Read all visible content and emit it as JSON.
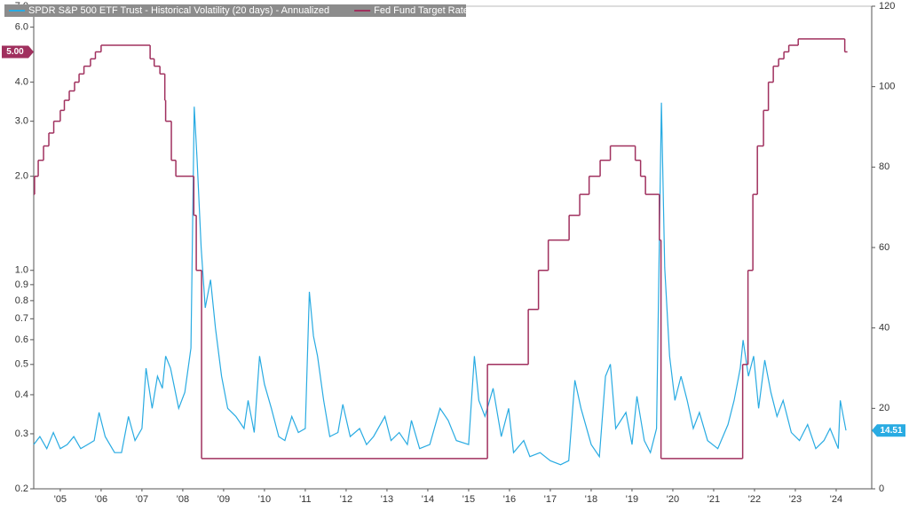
{
  "chart_data": {
    "type": "line",
    "log_y": true,
    "grid": false,
    "legend": "top-left",
    "xlim": [
      2004.85,
      2025.37
    ],
    "xticks": [
      {
        "value": 2005.5,
        "label": "'05"
      },
      {
        "value": 2006.5,
        "label": "'06"
      },
      {
        "value": 2007.5,
        "label": "'07"
      },
      {
        "value": 2008.5,
        "label": "'08"
      },
      {
        "value": 2009.5,
        "label": "'09"
      },
      {
        "value": 2010.5,
        "label": "'10"
      },
      {
        "value": 2011.5,
        "label": "'11"
      },
      {
        "value": 2012.5,
        "label": "'12"
      },
      {
        "value": 2013.5,
        "label": "'13"
      },
      {
        "value": 2014.5,
        "label": "'14"
      },
      {
        "value": 2015.5,
        "label": "'15"
      },
      {
        "value": 2016.5,
        "label": "'16"
      },
      {
        "value": 2017.5,
        "label": "'17"
      },
      {
        "value": 2018.5,
        "label": "'18"
      },
      {
        "value": 2019.5,
        "label": "'19"
      },
      {
        "value": 2020.5,
        "label": "'20"
      },
      {
        "value": 2021.5,
        "label": "'21"
      },
      {
        "value": 2022.5,
        "label": "'22"
      },
      {
        "value": 2023.5,
        "label": "'23"
      },
      {
        "value": 2024.5,
        "label": "'24"
      }
    ],
    "ylim": [
      0.2,
      7.0
    ],
    "yticks": [
      0.2,
      0.3,
      0.4,
      0.5,
      0.6,
      0.7,
      0.8,
      0.9,
      {
        "value": 1,
        "label": "1.0"
      },
      {
        "value": 2,
        "label": "2.0"
      },
      {
        "value": 3,
        "label": "3.0"
      },
      {
        "value": 4,
        "label": "4.0"
      },
      {
        "value": 6,
        "label": "6.0"
      },
      {
        "value": 7,
        "label": "7.0"
      }
    ],
    "y2lim": [
      0,
      120
    ],
    "y2ticks": [
      0,
      20,
      40,
      60,
      80,
      100,
      120
    ],
    "series": [
      {
        "name": "SPDR S&P 500 ETF Trust - Historical Volatility (20 days) - Annualized",
        "color": "#29abe2",
        "axis": "y2",
        "last_value_label": "14.51",
        "x": [
          2004.85,
          2005.0,
          2005.17,
          2005.33,
          2005.5,
          2005.67,
          2005.83,
          2006.0,
          2006.17,
          2006.33,
          2006.45,
          2006.6,
          2006.83,
          2007.0,
          2007.17,
          2007.33,
          2007.5,
          2007.6,
          2007.75,
          2007.88,
          2008.0,
          2008.08,
          2008.2,
          2008.4,
          2008.55,
          2008.7,
          2008.78,
          2008.85,
          2008.95,
          2009.05,
          2009.18,
          2009.3,
          2009.45,
          2009.6,
          2009.8,
          2010.0,
          2010.1,
          2010.25,
          2010.38,
          2010.5,
          2010.67,
          2010.85,
          2011.0,
          2011.17,
          2011.33,
          2011.5,
          2011.6,
          2011.7,
          2011.8,
          2011.95,
          2012.1,
          2012.3,
          2012.42,
          2012.6,
          2012.83,
          2013.0,
          2013.17,
          2013.45,
          2013.6,
          2013.8,
          2014.0,
          2014.1,
          2014.3,
          2014.55,
          2014.8,
          2015.0,
          2015.2,
          2015.5,
          2015.64,
          2015.75,
          2015.9,
          2016.1,
          2016.3,
          2016.48,
          2016.6,
          2016.85,
          2017.0,
          2017.25,
          2017.5,
          2017.75,
          2017.95,
          2018.1,
          2018.25,
          2018.5,
          2018.7,
          2018.85,
          2018.97,
          2019.1,
          2019.35,
          2019.5,
          2019.62,
          2019.8,
          2019.95,
          2020.1,
          2020.22,
          2020.3,
          2020.42,
          2020.55,
          2020.7,
          2020.85,
          2021.0,
          2021.15,
          2021.35,
          2021.6,
          2021.85,
          2022.0,
          2022.15,
          2022.22,
          2022.35,
          2022.48,
          2022.6,
          2022.75,
          2022.9,
          2023.05,
          2023.2,
          2023.4,
          2023.6,
          2023.8,
          2024.0,
          2024.2,
          2024.35,
          2024.55,
          2024.6,
          2024.74
        ],
        "values": [
          11,
          13,
          10,
          14,
          10,
          11,
          13,
          10,
          11,
          12,
          19,
          13,
          9,
          9,
          18,
          12,
          15,
          30,
          20,
          28,
          25,
          33,
          30,
          20,
          24,
          35,
          95,
          82,
          60,
          45,
          52,
          40,
          28,
          20,
          18,
          15,
          22,
          14,
          33,
          26,
          20,
          13,
          12,
          18,
          14,
          15,
          49,
          38,
          33,
          22,
          13,
          14,
          21,
          13,
          15,
          11,
          13,
          18,
          12,
          14,
          11,
          17,
          10,
          11,
          20,
          17,
          12,
          11,
          33,
          22,
          18,
          25,
          13,
          20,
          9,
          12,
          8,
          9,
          7,
          6,
          7,
          27,
          20,
          11,
          8,
          28,
          31,
          15,
          19,
          11,
          23,
          12,
          9,
          15,
          96,
          55,
          33,
          22,
          28,
          22,
          15,
          19,
          12,
          10,
          16,
          22,
          30,
          37,
          28,
          33,
          20,
          32,
          24,
          18,
          22,
          14,
          12,
          16,
          10,
          12,
          15,
          10,
          22,
          14.51
        ]
      },
      {
        "name": "Fed Fund Target Rate",
        "color": "#a0305e",
        "axis": "y",
        "step": true,
        "last_value_label": "5.00",
        "x": [
          2004.85,
          2004.87,
          2004.96,
          2005.09,
          2005.22,
          2005.34,
          2005.5,
          2005.6,
          2005.72,
          2005.85,
          2005.96,
          2006.08,
          2006.24,
          2006.36,
          2006.5,
          2007.7,
          2007.8,
          2007.94,
          2008.06,
          2008.08,
          2008.22,
          2008.33,
          2008.77,
          2008.83,
          2008.96,
          2015.96,
          2016.96,
          2017.21,
          2017.45,
          2017.96,
          2018.22,
          2018.45,
          2018.72,
          2018.97,
          2019.58,
          2019.71,
          2019.83,
          2020.17,
          2020.21,
          2022.21,
          2022.34,
          2022.46,
          2022.57,
          2022.72,
          2022.84,
          2022.96,
          2023.09,
          2023.22,
          2023.34,
          2023.57,
          2024.71
        ],
        "values": [
          1.75,
          2.0,
          2.25,
          2.5,
          2.75,
          3.0,
          3.25,
          3.5,
          3.75,
          4.0,
          4.25,
          4.5,
          4.75,
          5.0,
          5.25,
          4.75,
          4.5,
          4.25,
          3.5,
          3.0,
          2.25,
          2.0,
          1.5,
          1.0,
          0.25,
          0.5,
          0.75,
          1.0,
          1.25,
          1.5,
          1.75,
          2.0,
          2.25,
          2.5,
          2.25,
          2.0,
          1.75,
          1.25,
          0.25,
          0.5,
          1.0,
          1.75,
          2.5,
          3.25,
          4.0,
          4.5,
          4.75,
          5.0,
          5.25,
          5.5,
          5.0
        ]
      }
    ]
  }
}
